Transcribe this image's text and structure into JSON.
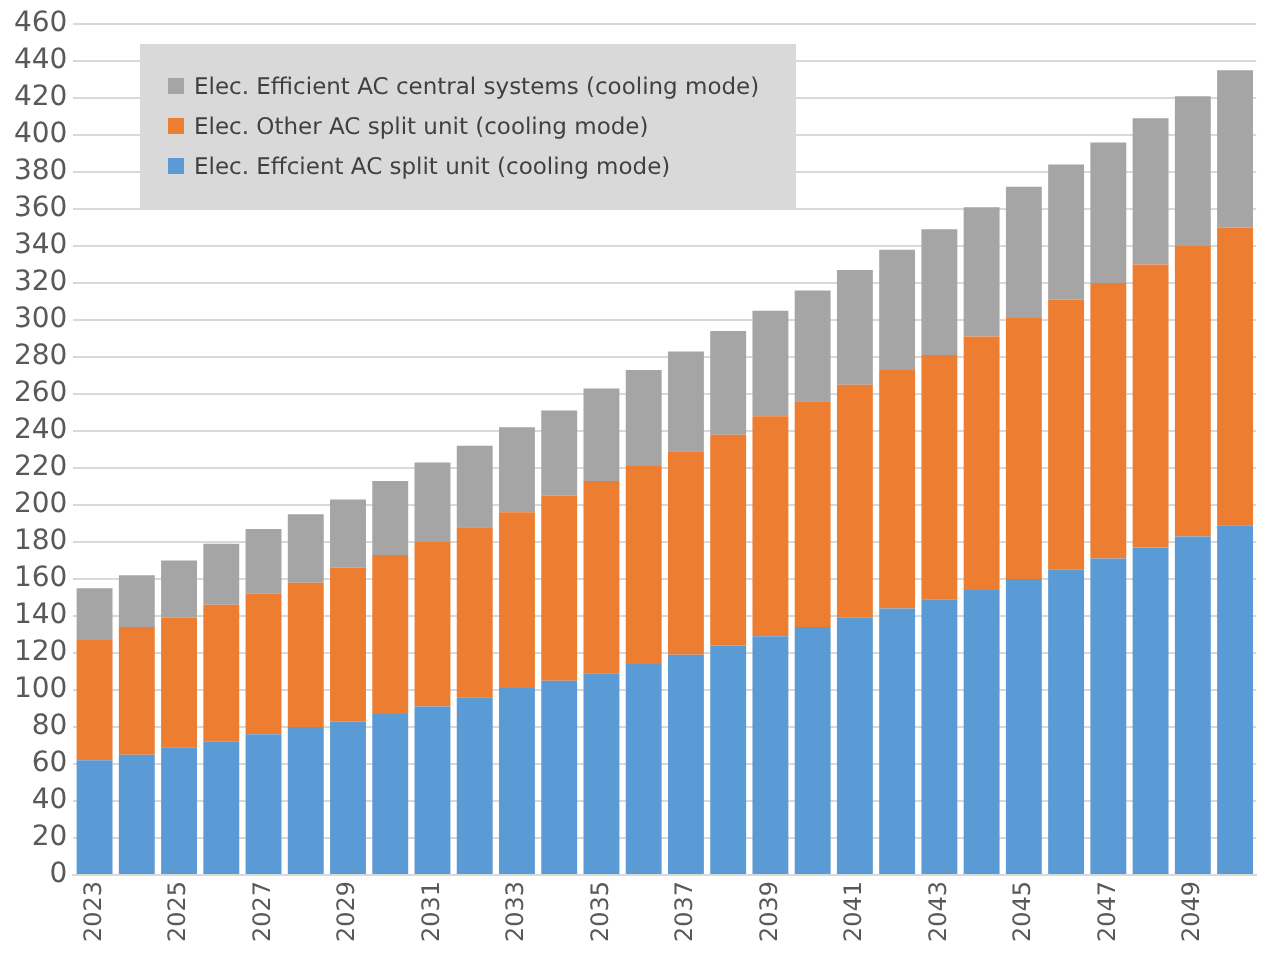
{
  "chart_data": {
    "type": "bar",
    "stacked": true,
    "categories": [
      "2023",
      null,
      "2025",
      null,
      "2027",
      null,
      "2029",
      null,
      "2031",
      null,
      "2033",
      null,
      "2035",
      null,
      "2037",
      null,
      "2039",
      null,
      "2041",
      null,
      "2043",
      null,
      "2045",
      null,
      "2047",
      null,
      "2049",
      null
    ],
    "series": [
      {
        "name": "Elec. Effcient AC split unit (cooling mode)",
        "color": "#5b9bd5",
        "values": [
          62,
          65,
          69,
          72,
          76,
          80,
          83,
          87,
          91,
          96,
          101,
          105,
          109,
          114,
          119,
          124,
          129,
          134,
          139,
          144,
          149,
          154,
          160,
          165,
          171,
          177,
          183,
          189
        ]
      },
      {
        "name": "Elec. Other AC split unit (cooling mode)",
        "color": "#ed7d31",
        "values": [
          65,
          69,
          70,
          74,
          76,
          78,
          83,
          86,
          89,
          92,
          95,
          100,
          104,
          107,
          110,
          114,
          119,
          122,
          126,
          129,
          132,
          137,
          141,
          146,
          149,
          153,
          157,
          161
        ]
      },
      {
        "name": "Elec. Efficient AC central systems (cooling mode)",
        "color": "#a5a5a5",
        "values": [
          28,
          28,
          31,
          33,
          35,
          37,
          37,
          40,
          43,
          44,
          46,
          46,
          50,
          52,
          54,
          56,
          57,
          60,
          62,
          65,
          68,
          70,
          71,
          73,
          76,
          79,
          81,
          85
        ]
      }
    ],
    "ylim": [
      0,
      460
    ],
    "yticks": [
      0,
      20,
      40,
      60,
      80,
      100,
      120,
      140,
      160,
      180,
      200,
      220,
      240,
      260,
      280,
      300,
      320,
      340,
      360,
      380,
      400,
      420,
      440,
      460
    ],
    "grid": "y",
    "legend": "top left"
  }
}
